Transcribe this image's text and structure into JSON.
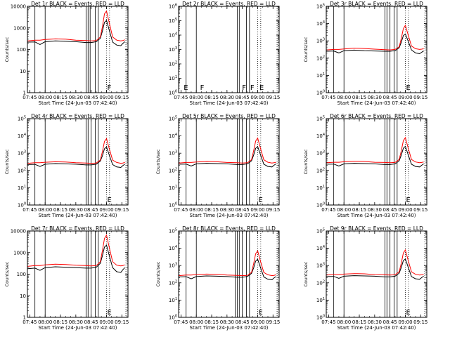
{
  "figure": {
    "colors": {
      "events": "#000000",
      "lld": "#ff0000",
      "axes": "#000000",
      "background": "#ffffff"
    },
    "x_tick_labels": [
      "07:45",
      "08:00",
      "08:15",
      "08:30",
      "08:45",
      "09:00",
      "09:15"
    ],
    "x_label": "Start Time (24-Jun-03 07:42:40)",
    "y_label": "Counts/sec"
  },
  "chart_data": [
    {
      "type": "line",
      "title": "Det 1r  BLACK = Events, RED = LLD",
      "xlabel": "Start Time (24-Jun-03 07:42:40)",
      "ylabel": "Counts/sec",
      "xlim": [
        "07:42:40",
        "09:21"
      ],
      "ylim": [
        1,
        10000
      ],
      "yscale": "log",
      "y_tick_labels": [
        "1",
        "10",
        "100",
        "1000",
        "10000"
      ],
      "vlines_solid": [
        "07:50",
        "08:00",
        "08:40",
        "08:42",
        "08:44",
        "08:49",
        "08:52"
      ],
      "vlines_dotted": [
        "09:00",
        "09:03",
        "09:19"
      ],
      "markers": [
        {
          "text": "F",
          "x": "09:00"
        }
      ],
      "x": [
        "07:43",
        "07:50",
        "07:55",
        "08:00",
        "08:10",
        "08:20",
        "08:30",
        "08:40",
        "08:45",
        "08:50",
        "08:54",
        "08:56",
        "08:58",
        "09:00",
        "09:03",
        "09:06",
        "09:10",
        "09:14",
        "09:16",
        "09:18"
      ],
      "series": [
        {
          "name": "Events",
          "color": "#000000",
          "values": [
            220,
            225,
            170,
            230,
            250,
            240,
            230,
            210,
            210,
            230,
            330,
            700,
            1800,
            2200,
            700,
            220,
            160,
            150,
            190,
            230
          ]
        },
        {
          "name": "LLD",
          "color": "#ff0000",
          "values": [
            250,
            270,
            270,
            290,
            310,
            300,
            270,
            260,
            250,
            260,
            380,
            1100,
            4500,
            6000,
            1500,
            380,
            270,
            250,
            260,
            280
          ]
        }
      ]
    },
    {
      "type": "line",
      "title": "Det 2r  BLACK = Events, RED = LLD",
      "xlabel": "Start Time (24-Jun-03 07:42:40)",
      "ylabel": "",
      "xlim": [
        "07:42:40",
        "09:21"
      ],
      "ylim": [
        1,
        1000000
      ],
      "yscale": "log",
      "y_tick_labels": [
        "10^0",
        "10^1",
        "10^2",
        "10^3",
        "10^4",
        "10^5",
        "10^6"
      ],
      "vlines_solid": [
        "07:50",
        "08:00",
        "08:40",
        "08:42",
        "08:49",
        "08:52"
      ],
      "vlines_dotted": [
        "09:00",
        "09:03",
        "09:19"
      ],
      "markers": [
        {
          "text": "E",
          "x": "07:47"
        },
        {
          "text": "F",
          "x": "08:03"
        },
        {
          "text": "F",
          "x": "08:44"
        },
        {
          "text": "F",
          "x": "08:52"
        },
        {
          "text": "E",
          "x": "09:01"
        }
      ],
      "x": [],
      "series": []
    },
    {
      "type": "line",
      "title": "Det 3r  BLACK = Events, RED = LLD",
      "xlabel": "Start Time (24-Jun-03 07:42:40)",
      "ylabel": "Counts/sec",
      "xlim": [
        "07:42:40",
        "09:21"
      ],
      "ylim": [
        1,
        100000
      ],
      "yscale": "log",
      "y_tick_labels": [
        "10^0",
        "10^1",
        "10^2",
        "10^3",
        "10^4",
        "10^5"
      ],
      "vlines_solid": [
        "07:50",
        "08:00",
        "08:40",
        "08:42",
        "08:45",
        "08:49",
        "08:52"
      ],
      "vlines_dotted": [
        "09:00",
        "09:03",
        "09:19"
      ],
      "markers": [
        {
          "text": "E",
          "x": "09:00"
        }
      ],
      "x": [
        "07:43",
        "07:50",
        "07:55",
        "08:00",
        "08:10",
        "08:20",
        "08:30",
        "08:40",
        "08:45",
        "08:50",
        "08:54",
        "08:56",
        "08:58",
        "09:00",
        "09:03",
        "09:06",
        "09:10",
        "09:14",
        "09:16",
        "09:18"
      ],
      "series": [
        {
          "name": "Events",
          "color": "#000000",
          "values": [
            250,
            260,
            200,
            270,
            290,
            270,
            260,
            250,
            250,
            270,
            400,
            800,
            2000,
            2500,
            900,
            300,
            200,
            180,
            220,
            260
          ]
        },
        {
          "name": "LLD",
          "color": "#ff0000",
          "values": [
            300,
            320,
            320,
            340,
            380,
            360,
            330,
            310,
            300,
            320,
            450,
            1300,
            5000,
            8000,
            2000,
            500,
            350,
            320,
            330,
            350
          ]
        }
      ]
    },
    {
      "type": "line",
      "title": "Det 4r  BLACK = Events, RED = LLD",
      "xlabel": "Start Time (24-Jun-03 07:42:40)",
      "ylabel": "Counts/sec",
      "xlim": [
        "07:42:40",
        "09:21"
      ],
      "ylim": [
        1,
        100000
      ],
      "yscale": "log",
      "y_tick_labels": [
        "10^0",
        "10^1",
        "10^2",
        "10^3",
        "10^4",
        "10^5"
      ],
      "vlines_solid": [
        "07:50",
        "08:00",
        "08:40",
        "08:42",
        "08:45",
        "08:49",
        "08:52"
      ],
      "vlines_dotted": [
        "09:00",
        "09:03",
        "09:19"
      ],
      "markers": [
        {
          "text": "E",
          "x": "09:00"
        }
      ],
      "x": [
        "07:43",
        "07:50",
        "07:55",
        "08:00",
        "08:10",
        "08:20",
        "08:30",
        "08:40",
        "08:45",
        "08:50",
        "08:54",
        "08:56",
        "08:58",
        "09:00",
        "09:03",
        "09:06",
        "09:10",
        "09:14",
        "09:16",
        "09:18"
      ],
      "series": [
        {
          "name": "Events",
          "color": "#000000",
          "values": [
            220,
            225,
            170,
            230,
            250,
            240,
            230,
            210,
            210,
            230,
            350,
            700,
            1800,
            2300,
            700,
            220,
            160,
            150,
            190,
            230
          ]
        },
        {
          "name": "LLD",
          "color": "#ff0000",
          "values": [
            260,
            280,
            280,
            300,
            320,
            310,
            280,
            270,
            260,
            270,
            400,
            1200,
            4800,
            7000,
            1600,
            400,
            290,
            260,
            270,
            290
          ]
        }
      ]
    },
    {
      "type": "line",
      "title": "Det 5r  BLACK = Events, RED = LLD",
      "xlabel": "Start Time (24-Jun-03 07:42:40)",
      "ylabel": "Counts/sec",
      "xlim": [
        "07:42:40",
        "09:21"
      ],
      "ylim": [
        1,
        100000
      ],
      "yscale": "log",
      "y_tick_labels": [
        "10^0",
        "10^1",
        "10^2",
        "10^3",
        "10^4",
        "10^5"
      ],
      "vlines_solid": [
        "07:50",
        "08:00",
        "08:40",
        "08:42",
        "08:45",
        "08:49",
        "08:52"
      ],
      "vlines_dotted": [
        "09:00",
        "09:03",
        "09:19"
      ],
      "markers": [
        {
          "text": "E",
          "x": "09:00"
        }
      ],
      "x": [
        "07:43",
        "07:50",
        "07:55",
        "08:00",
        "08:10",
        "08:20",
        "08:30",
        "08:40",
        "08:45",
        "08:50",
        "08:54",
        "08:56",
        "08:58",
        "09:00",
        "09:03",
        "09:06",
        "09:10",
        "09:14",
        "09:16",
        "09:18"
      ],
      "series": [
        {
          "name": "Events",
          "color": "#000000",
          "values": [
            230,
            235,
            180,
            240,
            260,
            250,
            240,
            220,
            220,
            240,
            360,
            750,
            1900,
            2400,
            750,
            230,
            170,
            160,
            200,
            240
          ]
        },
        {
          "name": "LLD",
          "color": "#ff0000",
          "values": [
            270,
            290,
            290,
            310,
            330,
            320,
            290,
            280,
            270,
            280,
            420,
            1300,
            5000,
            7500,
            1700,
            420,
            300,
            270,
            280,
            300
          ]
        }
      ]
    },
    {
      "type": "line",
      "title": "Det 6r  BLACK = Events, RED = LLD",
      "xlabel": "Start Time (24-Jun-03 07:42:40)",
      "ylabel": "Counts/sec",
      "xlim": [
        "07:42:40",
        "09:21"
      ],
      "ylim": [
        1,
        100000
      ],
      "yscale": "log",
      "y_tick_labels": [
        "10^0",
        "10^1",
        "10^2",
        "10^3",
        "10^4",
        "10^5"
      ],
      "vlines_solid": [
        "07:50",
        "08:00",
        "08:40",
        "08:42",
        "08:45",
        "08:49",
        "08:52"
      ],
      "vlines_dotted": [
        "09:00",
        "09:03",
        "09:19"
      ],
      "markers": [
        {
          "text": "E",
          "x": "09:00"
        }
      ],
      "x": [
        "07:43",
        "07:50",
        "07:55",
        "08:00",
        "08:10",
        "08:20",
        "08:30",
        "08:40",
        "08:45",
        "08:50",
        "08:54",
        "08:56",
        "08:58",
        "09:00",
        "09:03",
        "09:06",
        "09:10",
        "09:14",
        "09:16",
        "09:18"
      ],
      "series": [
        {
          "name": "Events",
          "color": "#000000",
          "values": [
            230,
            235,
            180,
            240,
            260,
            250,
            240,
            220,
            220,
            240,
            360,
            750,
            1900,
            2500,
            750,
            230,
            170,
            160,
            200,
            240
          ]
        },
        {
          "name": "LLD",
          "color": "#ff0000",
          "values": [
            280,
            300,
            300,
            320,
            340,
            330,
            300,
            290,
            280,
            290,
            430,
            1300,
            5200,
            8000,
            1800,
            430,
            310,
            280,
            290,
            310
          ]
        }
      ]
    },
    {
      "type": "line",
      "title": "Det 7r  BLACK = Events, RED = LLD",
      "xlabel": "Start Time (24-Jun-03 07:42:40)",
      "ylabel": "Counts/sec",
      "xlim": [
        "07:42:40",
        "09:21"
      ],
      "ylim": [
        1,
        10000
      ],
      "yscale": "log",
      "y_tick_labels": [
        "1",
        "10",
        "100",
        "1000",
        "10000"
      ],
      "vlines_solid": [
        "07:50",
        "08:00",
        "08:40",
        "08:42",
        "08:45",
        "08:49",
        "08:52"
      ],
      "vlines_dotted": [
        "09:00",
        "09:03",
        "09:19"
      ],
      "markers": [
        {
          "text": "E",
          "x": "09:00"
        }
      ],
      "x": [
        "07:43",
        "07:50",
        "07:55",
        "08:00",
        "08:10",
        "08:20",
        "08:30",
        "08:40",
        "08:45",
        "08:50",
        "08:54",
        "08:56",
        "08:58",
        "09:00",
        "09:03",
        "09:06",
        "09:10",
        "09:14",
        "09:16",
        "09:18"
      ],
      "series": [
        {
          "name": "Events",
          "color": "#000000",
          "values": [
            180,
            190,
            150,
            200,
            220,
            210,
            200,
            190,
            190,
            210,
            320,
            700,
            1800,
            2200,
            650,
            200,
            130,
            120,
            160,
            200
          ]
        },
        {
          "name": "LLD",
          "color": "#ff0000",
          "values": [
            230,
            250,
            250,
            270,
            290,
            280,
            260,
            250,
            240,
            250,
            380,
            1200,
            4500,
            6500,
            1500,
            380,
            260,
            240,
            250,
            270
          ]
        }
      ]
    },
    {
      "type": "line",
      "title": "Det 8r  BLACK = Events, RED = LLD",
      "xlabel": "Start Time (24-Jun-03 07:42:40)",
      "ylabel": "Counts/sec",
      "xlim": [
        "07:42:40",
        "09:21"
      ],
      "ylim": [
        1,
        100000
      ],
      "yscale": "log",
      "y_tick_labels": [
        "10^0",
        "10^1",
        "10^2",
        "10^3",
        "10^4",
        "10^5"
      ],
      "vlines_solid": [
        "07:50",
        "08:00",
        "08:38",
        "08:40",
        "08:42",
        "08:45",
        "08:49",
        "08:52"
      ],
      "vlines_dotted": [
        "09:00",
        "09:03",
        "09:19"
      ],
      "markers": [
        {
          "text": "E",
          "x": "09:00"
        }
      ],
      "x": [
        "07:43",
        "07:50",
        "07:55",
        "08:00",
        "08:10",
        "08:20",
        "08:30",
        "08:40",
        "08:45",
        "08:50",
        "08:54",
        "08:56",
        "08:58",
        "09:00",
        "09:03",
        "09:06",
        "09:10",
        "09:14",
        "09:16",
        "09:18"
      ],
      "series": [
        {
          "name": "Events",
          "color": "#000000",
          "values": [
            220,
            225,
            170,
            230,
            250,
            240,
            230,
            210,
            210,
            230,
            350,
            700,
            1800,
            2300,
            700,
            220,
            160,
            150,
            190,
            230
          ]
        },
        {
          "name": "LLD",
          "color": "#ff0000",
          "values": [
            260,
            280,
            280,
            300,
            320,
            310,
            280,
            270,
            260,
            270,
            400,
            1200,
            4800,
            7000,
            1600,
            400,
            290,
            260,
            270,
            290
          ]
        }
      ]
    },
    {
      "type": "line",
      "title": "Det 9r  BLACK = Events, RED = LLD",
      "xlabel": "Start Time (24-Jun-03 07:42:40)",
      "ylabel": "Counts/sec",
      "xlim": [
        "07:42:40",
        "09:21"
      ],
      "ylim": [
        1,
        100000
      ],
      "yscale": "log",
      "y_tick_labels": [
        "10^0",
        "10^1",
        "10^2",
        "10^3",
        "10^4",
        "10^5"
      ],
      "vlines_solid": [
        "07:50",
        "08:00",
        "08:40",
        "08:42",
        "08:45",
        "08:49",
        "08:52"
      ],
      "vlines_dotted": [
        "09:00",
        "09:03",
        "09:19"
      ],
      "markers": [
        {
          "text": "E",
          "x": "09:00"
        }
      ],
      "x": [
        "07:43",
        "07:50",
        "07:55",
        "08:00",
        "08:10",
        "08:20",
        "08:30",
        "08:40",
        "08:45",
        "08:50",
        "08:54",
        "08:56",
        "08:58",
        "09:00",
        "09:03",
        "09:06",
        "09:10",
        "09:14",
        "09:16",
        "09:18"
      ],
      "series": [
        {
          "name": "Events",
          "color": "#000000",
          "values": [
            230,
            235,
            180,
            240,
            260,
            250,
            240,
            220,
            220,
            240,
            360,
            750,
            1900,
            2400,
            750,
            230,
            170,
            160,
            200,
            240
          ]
        },
        {
          "name": "LLD",
          "color": "#ff0000",
          "values": [
            280,
            300,
            300,
            320,
            340,
            330,
            300,
            290,
            280,
            290,
            430,
            1300,
            5200,
            8000,
            1800,
            430,
            310,
            280,
            290,
            310
          ]
        }
      ]
    }
  ]
}
